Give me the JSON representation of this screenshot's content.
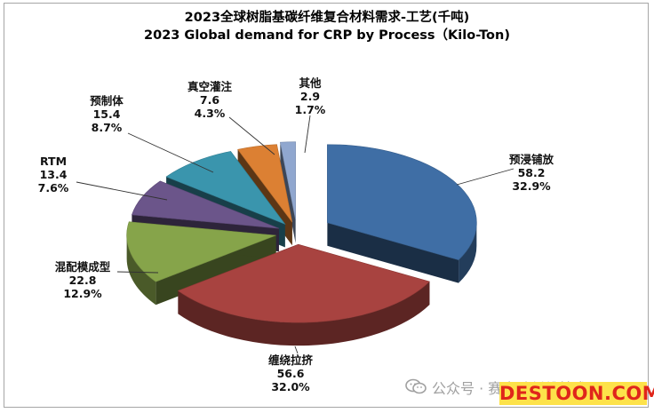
{
  "chart_data": {
    "type": "pie",
    "title": "2023全球树脂基碳纤维复合材料需求-工艺(千吨)",
    "subtitle": "2023 Global demand for CRP by Process（Kilo-Ton)",
    "slices": [
      {
        "label": "预浸铺放",
        "value": 58.2,
        "percent": "32.9%",
        "color": "#3f6ea5"
      },
      {
        "label": "缠绕拉挤",
        "value": 56.6,
        "percent": "32.0%",
        "color": "#a84340"
      },
      {
        "label": "混配模成型",
        "value": 22.8,
        "percent": "12.9%",
        "color": "#86a44a"
      },
      {
        "label": "RTM",
        "value": 13.4,
        "percent": "7.6%",
        "color": "#6b558a"
      },
      {
        "label": "预制体",
        "value": 15.4,
        "percent": "8.7%",
        "color": "#3a95ad"
      },
      {
        "label": "真空灌注",
        "value": 7.6,
        "percent": "4.3%",
        "color": "#dc8033"
      },
      {
        "label": "其他",
        "value": 2.9,
        "percent": "1.7%",
        "color": "#90a7cf"
      }
    ]
  },
  "watermark": {
    "text": "公众号 · 赛奥碳纤维技术",
    "logo_main": "DESTOON",
    "logo_suffix": ".COM"
  }
}
